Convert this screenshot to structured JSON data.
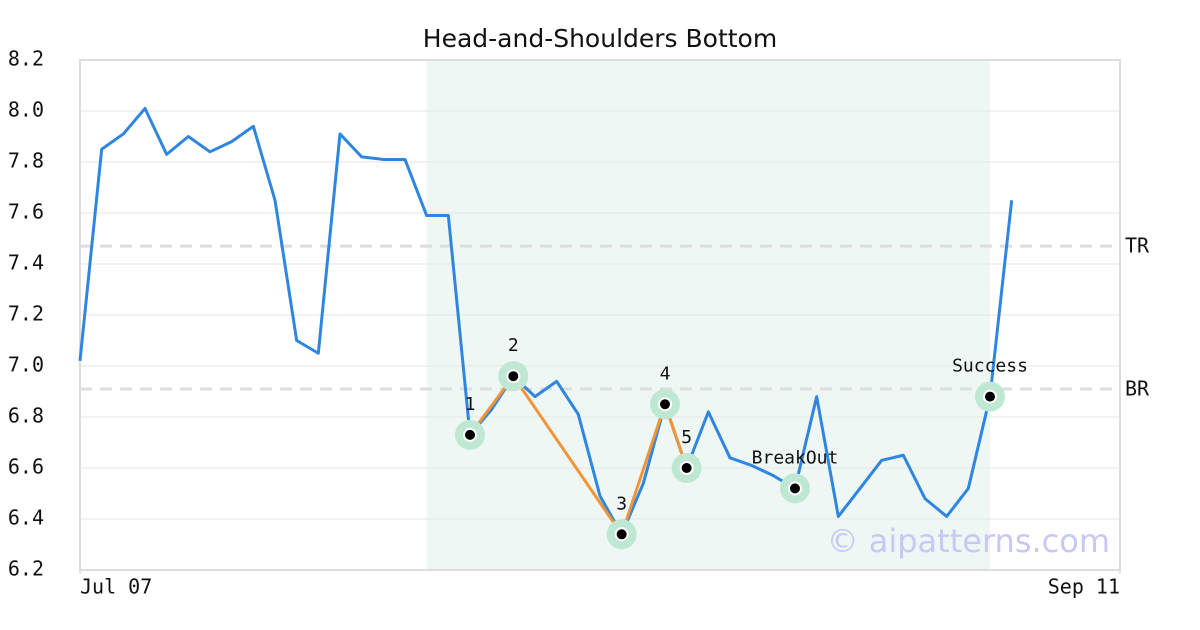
{
  "chart_data": {
    "type": "line",
    "title": "Head-and-Shoulders Bottom",
    "x": [
      0,
      1,
      2,
      3,
      4,
      5,
      6,
      7,
      8,
      9,
      10,
      11,
      12,
      13,
      14,
      15,
      16,
      17,
      18,
      19,
      20,
      21,
      22,
      23,
      24,
      25,
      26,
      27,
      28,
      29,
      30,
      31,
      32,
      33,
      34,
      35,
      36,
      37,
      38,
      39,
      40,
      41,
      42,
      43
    ],
    "series": [
      {
        "color": "#2f86e0",
        "values": [
          7.02,
          7.85,
          7.91,
          8.01,
          7.83,
          7.9,
          7.84,
          7.88,
          7.94,
          7.65,
          7.1,
          7.05,
          7.91,
          7.82,
          7.81,
          7.81,
          7.59,
          7.59,
          6.73,
          6.83,
          6.96,
          6.88,
          6.94,
          6.81,
          6.49,
          6.34,
          6.54,
          6.85,
          6.6,
          6.82,
          6.64,
          6.61,
          6.57,
          6.52,
          6.88,
          6.41,
          6.52,
          6.63,
          6.65,
          6.48,
          6.41,
          6.52,
          6.88,
          7.65
        ]
      }
    ],
    "xlim": [
      0,
      48
    ],
    "xticks": [
      {
        "value": 0,
        "label": "Jul 07"
      },
      {
        "value": 48,
        "label": "Sep 11"
      }
    ],
    "ylim": [
      6.2,
      8.2
    ],
    "yticks": [
      6.2,
      6.4,
      6.6,
      6.8,
      {
        "value": 7,
        "label": "7.0"
      },
      7.2,
      7.4,
      7.6,
      7.8,
      {
        "value": 8,
        "label": "8.0"
      },
      8.2
    ],
    "grid": true,
    "shaded_xrange": [
      16,
      42
    ],
    "shaded_color": "#eef7f3",
    "pattern_color": "#f0953a",
    "marker_halo_color": "#bfe8d4",
    "pattern_points": [
      {
        "label": "1",
        "x": 18,
        "y": 6.73
      },
      {
        "label": "2",
        "x": 20,
        "y": 6.96
      },
      {
        "label": "3",
        "x": 25,
        "y": 6.34
      },
      {
        "label": "4",
        "x": 27,
        "y": 6.85
      },
      {
        "label": "5",
        "x": 28,
        "y": 6.6
      }
    ],
    "signal_points": [
      {
        "label": "BreakOut",
        "x": 33,
        "y": 6.52
      },
      {
        "label": "Success",
        "x": 42,
        "y": 6.88
      }
    ],
    "hlines": [
      {
        "label": "TR",
        "value": 7.47
      },
      {
        "label": "BR",
        "value": 6.91
      }
    ],
    "watermark": "© aipatterns.com"
  }
}
